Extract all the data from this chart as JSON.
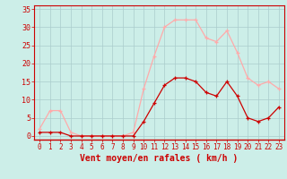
{
  "x": [
    0,
    1,
    2,
    3,
    4,
    5,
    6,
    7,
    8,
    9,
    10,
    11,
    12,
    13,
    14,
    15,
    16,
    17,
    18,
    19,
    20,
    21,
    22,
    23
  ],
  "wind_avg": [
    1,
    1,
    1,
    0,
    0,
    0,
    0,
    0,
    0,
    0,
    4,
    9,
    14,
    16,
    16,
    15,
    12,
    11,
    15,
    11,
    5,
    4,
    5,
    8
  ],
  "wind_gust": [
    2,
    7,
    7,
    1,
    0,
    0,
    0,
    0,
    0,
    1,
    13,
    22,
    30,
    32,
    32,
    32,
    27,
    26,
    29,
    23,
    16,
    14,
    15,
    13
  ],
  "avg_color": "#cc0000",
  "gust_color": "#ffaaaa",
  "bg_color": "#cceee8",
  "grid_color": "#aacccc",
  "axis_color": "#cc0000",
  "xlabel": "Vent moyen/en rafales ( km/h )",
  "yticks": [
    0,
    5,
    10,
    15,
    20,
    25,
    30,
    35
  ],
  "ylim": [
    -1,
    36
  ],
  "xlim": [
    -0.5,
    23.5
  ],
  "xtick_fontsize": 5.5,
  "ytick_fontsize": 6,
  "xlabel_fontsize": 7
}
